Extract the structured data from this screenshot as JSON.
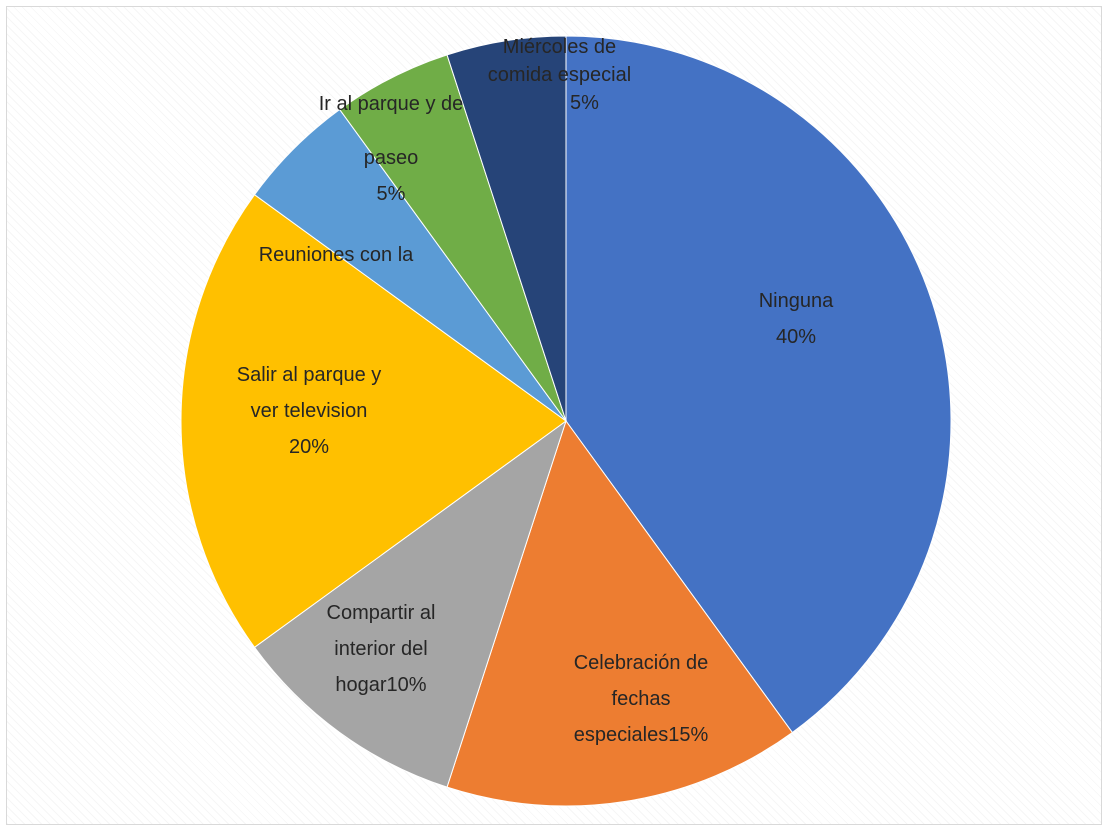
{
  "chart_data": {
    "type": "pie",
    "title": "",
    "start_angle_deg": 0,
    "direction": "clockwise",
    "slices": [
      {
        "label_lines": [
          "Ninguna",
          "40%"
        ],
        "value": 40,
        "color": "#4472C4"
      },
      {
        "label_lines": [
          "Celebración de",
          "fechas",
          "especiales15%"
        ],
        "value": 15,
        "color": "#ED7D31"
      },
      {
        "label_lines": [
          "Compartir al",
          "interior del",
          "hogar10%"
        ],
        "value": 10,
        "color": "#A5A5A5"
      },
      {
        "label_lines": [
          "Salir al parque y",
          "ver television",
          "20%"
        ],
        "value": 20,
        "color": "#FFC000"
      },
      {
        "label_lines": [
          "Reuniones con la"
        ],
        "value": 5,
        "color": "#5B9BD5"
      },
      {
        "label_lines": [
          "Ir al parque y de",
          "paseo",
          "5%"
        ],
        "value": 5,
        "color": "#70AD47"
      },
      {
        "label_lines": [
          "Miércoles de",
          "comida especial",
          "5%"
        ],
        "value": 5,
        "color": "#264478"
      }
    ]
  }
}
